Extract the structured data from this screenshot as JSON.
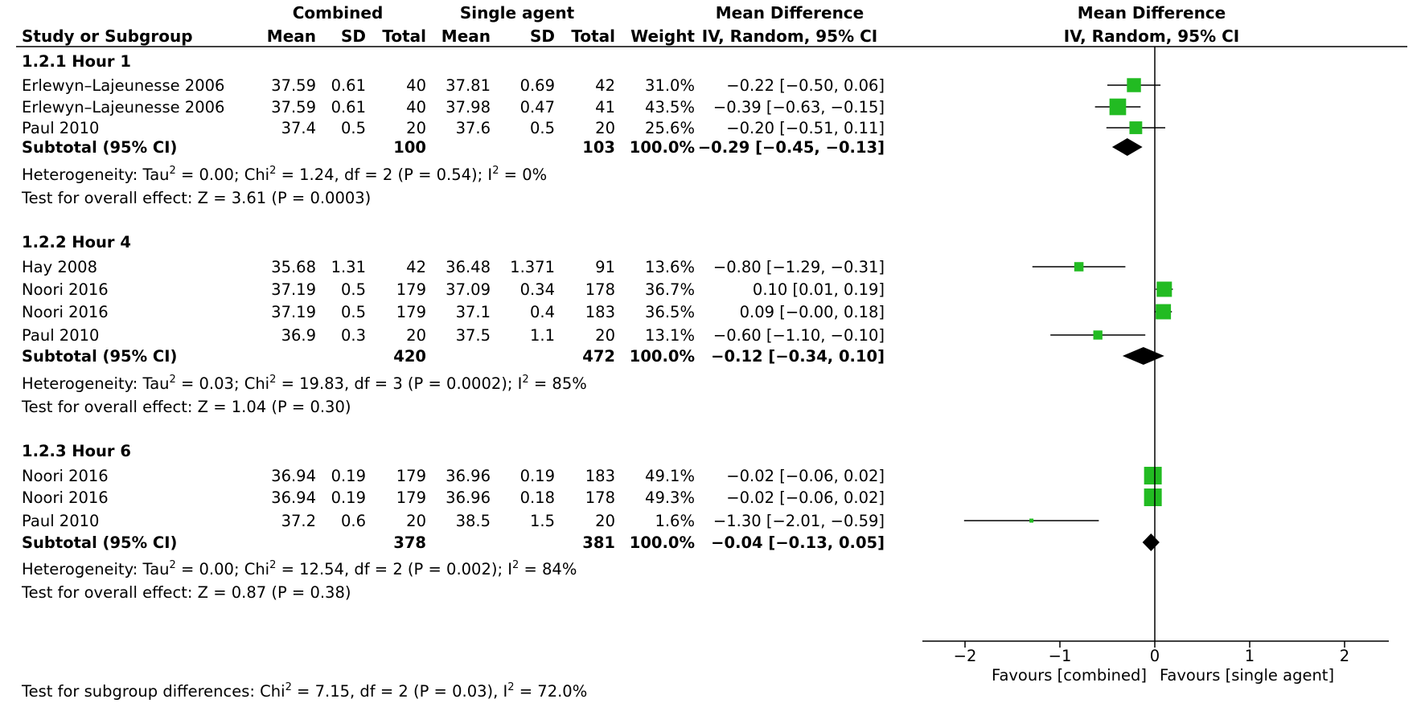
{
  "headers": {
    "combined": "Combined",
    "single_agent": "Single agent",
    "mean_difference": "Mean Difference",
    "study_or_subgroup": "Study or Subgroup",
    "mean": "Mean",
    "sd": "SD",
    "total": "Total",
    "weight": "Weight",
    "ci_method": "IV, Random, 95% CI",
    "plot_title": "Mean Difference",
    "plot_subtitle": "IV, Random, 95% CI"
  },
  "chart_data": {
    "type": "forest",
    "title": "Mean Difference",
    "subtitle": "IV, Random, 95% CI",
    "xlim": [
      -2.5,
      2.5
    ],
    "ticks": [
      -2,
      -1,
      0,
      1,
      2
    ],
    "tick_labels": [
      "−2",
      "−1",
      "0",
      "1",
      "2"
    ],
    "favours_left": "Favours [combined]",
    "favours_right": "Favours [single agent]",
    "subgroup_test": "Test for subgroup differences: Chi² = 7.15, df = 2 (P = 0.03), I² = 72.0%",
    "colors": {
      "study": "#22bb22",
      "summary": "#000000"
    },
    "subgroups": [
      {
        "title": "1.2.1 Hour 1",
        "studies": [
          {
            "name": "Erlewyn–Lajeunesse 2006",
            "c_mean": "37.59",
            "c_sd": "0.61",
            "c_total": "40",
            "s_mean": "37.81",
            "s_sd": "0.69",
            "s_total": "42",
            "weight": "31.0%",
            "ci_text": "−0.22 [−0.50, 0.06]",
            "md": -0.22,
            "lo": -0.5,
            "hi": 0.06,
            "w": 31.0
          },
          {
            "name": "Erlewyn–Lajeunesse 2006",
            "c_mean": "37.59",
            "c_sd": "0.61",
            "c_total": "40",
            "s_mean": "37.98",
            "s_sd": "0.47",
            "s_total": "41",
            "weight": "43.5%",
            "ci_text": "−0.39 [−0.63, −0.15]",
            "md": -0.39,
            "lo": -0.63,
            "hi": -0.15,
            "w": 43.5
          },
          {
            "name": "Paul 2010",
            "c_mean": "37.4",
            "c_sd": "0.5",
            "c_total": "20",
            "s_mean": "37.6",
            "s_sd": "0.5",
            "s_total": "20",
            "weight": "25.6%",
            "ci_text": "−0.20 [−0.51, 0.11]",
            "md": -0.2,
            "lo": -0.51,
            "hi": 0.11,
            "w": 25.6
          }
        ],
        "subtotal": {
          "label": "Subtotal (95% CI)",
          "c_total": "100",
          "s_total": "103",
          "weight": "100.0%",
          "ci_text": "−0.29 [−0.45, −0.13]",
          "md": -0.29,
          "lo": -0.45,
          "hi": -0.13
        },
        "heterogeneity": {
          "prefix": "Heterogeneity: Tau",
          "chi": "= 0.00; Chi",
          "df": "= 1.24, df = 2 (P = 0.54); I",
          "end": "= 0%"
        },
        "overall": "Test for overall effect: Z = 3.61 (P = 0.0003)"
      },
      {
        "title": "1.2.2 Hour 4",
        "studies": [
          {
            "name": "Hay 2008",
            "c_mean": "35.68",
            "c_sd": "1.31",
            "c_total": "42",
            "s_mean": "36.48",
            "s_sd": "1.371",
            "s_total": "91",
            "weight": "13.6%",
            "ci_text": "−0.80 [−1.29, −0.31]",
            "md": -0.8,
            "lo": -1.29,
            "hi": -0.31,
            "w": 13.6
          },
          {
            "name": "Noori 2016",
            "c_mean": "37.19",
            "c_sd": "0.5",
            "c_total": "179",
            "s_mean": "37.09",
            "s_sd": "0.34",
            "s_total": "178",
            "weight": "36.7%",
            "ci_text": "0.10 [0.01, 0.19]",
            "md": 0.1,
            "lo": 0.01,
            "hi": 0.19,
            "w": 36.7
          },
          {
            "name": "Noori 2016",
            "c_mean": "37.19",
            "c_sd": "0.5",
            "c_total": "179",
            "s_mean": "37.1",
            "s_sd": "0.4",
            "s_total": "183",
            "weight": "36.5%",
            "ci_text": "0.09 [−0.00, 0.18]",
            "md": 0.09,
            "lo": -0.0,
            "hi": 0.18,
            "w": 36.5
          },
          {
            "name": "Paul 2010",
            "c_mean": "36.9",
            "c_sd": "0.3",
            "c_total": "20",
            "s_mean": "37.5",
            "s_sd": "1.1",
            "s_total": "20",
            "weight": "13.1%",
            "ci_text": "−0.60 [−1.10, −0.10]",
            "md": -0.6,
            "lo": -1.1,
            "hi": -0.1,
            "w": 13.1
          }
        ],
        "subtotal": {
          "label": "Subtotal (95% CI)",
          "c_total": "420",
          "s_total": "472",
          "weight": "100.0%",
          "ci_text": "−0.12 [−0.34, 0.10]",
          "md": -0.12,
          "lo": -0.34,
          "hi": 0.1
        },
        "heterogeneity": {
          "prefix": "Heterogeneity: Tau",
          "chi": "= 0.03; Chi",
          "df": "= 19.83, df = 3 (P = 0.0002); I",
          "end": "= 85%"
        },
        "overall": "Test for overall effect: Z = 1.04 (P = 0.30)"
      },
      {
        "title": "1.2.3 Hour 6",
        "studies": [
          {
            "name": "Noori 2016",
            "c_mean": "36.94",
            "c_sd": "0.19",
            "c_total": "179",
            "s_mean": "36.96",
            "s_sd": "0.19",
            "s_total": "183",
            "weight": "49.1%",
            "ci_text": "−0.02 [−0.06, 0.02]",
            "md": -0.02,
            "lo": -0.06,
            "hi": 0.02,
            "w": 49.1
          },
          {
            "name": "Noori 2016",
            "c_mean": "36.94",
            "c_sd": "0.19",
            "c_total": "179",
            "s_mean": "36.96",
            "s_sd": "0.18",
            "s_total": "178",
            "weight": "49.3%",
            "ci_text": "−0.02 [−0.06, 0.02]",
            "md": -0.02,
            "lo": -0.06,
            "hi": 0.02,
            "w": 49.3
          },
          {
            "name": "Paul 2010",
            "c_mean": "37.2",
            "c_sd": "0.6",
            "c_total": "20",
            "s_mean": "38.5",
            "s_sd": "1.5",
            "s_total": "20",
            "weight": "1.6%",
            "ci_text": "−1.30 [−2.01, −0.59]",
            "md": -1.3,
            "lo": -2.01,
            "hi": -0.59,
            "w": 1.6
          }
        ],
        "subtotal": {
          "label": "Subtotal (95% CI)",
          "c_total": "378",
          "s_total": "381",
          "weight": "100.0%",
          "ci_text": "−0.04 [−0.13, 0.05]",
          "md": -0.04,
          "lo": -0.13,
          "hi": 0.05
        },
        "heterogeneity": {
          "prefix": "Heterogeneity: Tau",
          "chi": "= 0.00; Chi",
          "df": "= 12.54, df = 2 (P = 0.002); I",
          "end": "= 84%"
        },
        "overall": "Test for overall effect: Z = 0.87 (P = 0.38)"
      }
    ]
  }
}
